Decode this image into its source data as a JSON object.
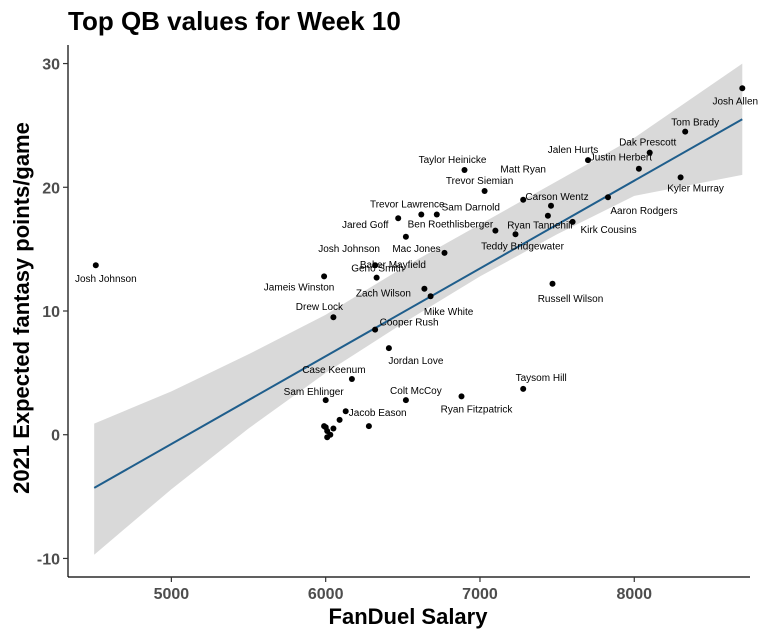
{
  "chart_data": {
    "type": "scatter",
    "title": "Top QB values for Week 10",
    "xlabel": "FanDuel Salary",
    "ylabel": "2021 Expected fantasy points/game",
    "xlim": [
      4330,
      8750
    ],
    "ylim": [
      -11.5,
      31.5
    ],
    "x_ticks": [
      5000,
      6000,
      7000,
      8000
    ],
    "y_ticks": [
      -10,
      0,
      10,
      20,
      30
    ],
    "grid": false,
    "trend_line": {
      "x": [
        4500,
        8700
      ],
      "y": [
        -4.3,
        25.5
      ]
    },
    "confidence_band": {
      "x": [
        4500,
        5000,
        5500,
        6000,
        6500,
        7000,
        7500,
        8000,
        8700
      ],
      "lower": [
        -9.7,
        -4.4,
        0.5,
        5.0,
        9.0,
        12.8,
        16.2,
        19.3,
        21.0
      ],
      "upper": [
        0.9,
        3.5,
        6.5,
        9.7,
        13.5,
        17.0,
        20.5,
        24.0,
        30.0
      ]
    },
    "points": [
      {
        "label": "Josh Allen",
        "x": 8700,
        "y": 28.0
      },
      {
        "label": "Tom Brady",
        "x": 8330,
        "y": 24.5
      },
      {
        "label": "Dak Prescott",
        "x": 8100,
        "y": 22.8
      },
      {
        "label": "Kyler Murray",
        "x": 8300,
        "y": 20.8
      },
      {
        "label": "Justin Herbert",
        "x": 8030,
        "y": 21.5
      },
      {
        "label": "Aaron Rodgers",
        "x": 7830,
        "y": 19.2
      },
      {
        "label": "Jalen Hurts",
        "x": 7700,
        "y": 22.2
      },
      {
        "label": "Kirk Cousins",
        "x": 7600,
        "y": 17.2
      },
      {
        "label": "Carson Wentz",
        "x": 7460,
        "y": 18.5
      },
      {
        "label": "Ryan Tannehill",
        "x": 7440,
        "y": 17.7
      },
      {
        "label": "Matt Ryan",
        "x": 7280,
        "y": 19.0
      },
      {
        "label": "Teddy Bridgewater",
        "x": 7230,
        "y": 16.2
      },
      {
        "label": "Taylor Heinicke",
        "x": 6900,
        "y": 21.4
      },
      {
        "label": "Trevor Siemian",
        "x": 7030,
        "y": 19.7
      },
      {
        "label": "Ben Roethlisberger",
        "x": 7100,
        "y": 16.5
      },
      {
        "label": "Sam Darnold",
        "x": 6720,
        "y": 17.8
      },
      {
        "label": "Trevor Lawrence",
        "x": 6620,
        "y": 17.8
      },
      {
        "label": "Jared Goff",
        "x": 6470,
        "y": 17.5
      },
      {
        "label": "Mac Jones",
        "x": 6770,
        "y": 14.7
      },
      {
        "label": "Baker Mayfield",
        "x": 6520,
        "y": 16.0
      },
      {
        "label": "Josh Johnson",
        "x": 6320,
        "y": 13.7
      },
      {
        "label": "Josh Johnson",
        "x": 4510,
        "y": 13.7
      },
      {
        "label": "Jameis Winston",
        "x": 5990,
        "y": 12.8
      },
      {
        "label": "Geno Smith",
        "x": 6330,
        "y": 12.7
      },
      {
        "label": "Zach Wilson",
        "x": 6640,
        "y": 11.8
      },
      {
        "label": "Mike White",
        "x": 6680,
        "y": 11.2
      },
      {
        "label": "Russell Wilson",
        "x": 7470,
        "y": 12.2
      },
      {
        "label": "Drew Lock",
        "x": 6050,
        "y": 9.5
      },
      {
        "label": "Cooper Rush",
        "x": 6320,
        "y": 8.5
      },
      {
        "label": "Jordan Love",
        "x": 6410,
        "y": 7.0
      },
      {
        "label": "Case Keenum",
        "x": 6170,
        "y": 4.5
      },
      {
        "label": "Taysom Hill",
        "x": 7280,
        "y": 3.7
      },
      {
        "label": "Sam Ehlinger",
        "x": 6000,
        "y": 2.8
      },
      {
        "label": "Colt McCoy",
        "x": 6520,
        "y": 2.8
      },
      {
        "label": "Ryan Fitzpatrick",
        "x": 6880,
        "y": 3.1
      },
      {
        "label": "Jacob Eason",
        "x": 6130,
        "y": 1.9
      },
      {
        "label": "",
        "x": 6280,
        "y": 0.7
      },
      {
        "label": "",
        "x": 6090,
        "y": 1.2
      },
      {
        "label": "",
        "x": 5990,
        "y": 0.7
      },
      {
        "label": "",
        "x": 6010,
        "y": 0.3
      },
      {
        "label": "",
        "x": 6030,
        "y": 0.0
      },
      {
        "label": "",
        "x": 6050,
        "y": 0.5
      },
      {
        "label": "",
        "x": 6010,
        "y": -0.2
      },
      {
        "label": "",
        "x": 6000,
        "y": 0.6
      }
    ]
  }
}
